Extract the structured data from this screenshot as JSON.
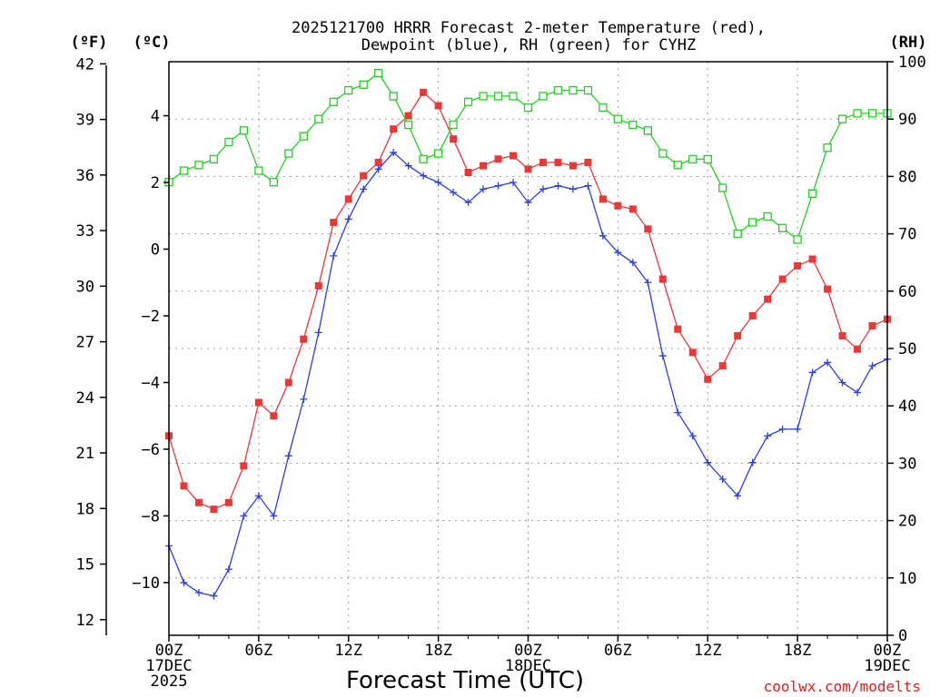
{
  "chart_data": {
    "type": "line",
    "title": "2025121700 HRRR Forecast 2-meter Temperature (red),",
    "subtitle": "Dewpoint (blue), RH (green) for CYHZ",
    "xlabel": "Forecast Time (UTC)",
    "credit": "coolwx.com/modelts",
    "units": {
      "fahrenheit": "(ºF)",
      "celsius": "(ºC)",
      "rh": "(RH)"
    },
    "x_range": [
      0,
      48
    ],
    "celsius_range": [
      -11.58,
      5.62
    ],
    "rh_range": [
      0,
      100
    ],
    "fahrenheit_ticks": [
      "12",
      "15",
      "18",
      "21",
      "24",
      "27",
      "30",
      "33",
      "36",
      "39",
      "42"
    ],
    "fahrenheit_tick_values": [
      12,
      15,
      18,
      21,
      24,
      27,
      30,
      33,
      36,
      39,
      42
    ],
    "celsius_ticks": [
      "4",
      "2",
      "0",
      "-2",
      "-4",
      "-6",
      "-8",
      "-10"
    ],
    "celsius_tick_values": [
      4,
      2,
      0,
      -2,
      -4,
      -6,
      -8,
      -10
    ],
    "rh_ticks": [
      "100",
      "90",
      "80",
      "70",
      "60",
      "50",
      "40",
      "30",
      "20",
      "10",
      "0"
    ],
    "rh_tick_values": [
      100,
      90,
      80,
      70,
      60,
      50,
      40,
      30,
      20,
      10,
      0
    ],
    "x_ticks": [
      {
        "x": 0,
        "line1": "00Z",
        "line2": "17DEC",
        "line3": "2025"
      },
      {
        "x": 6,
        "line1": "06Z"
      },
      {
        "x": 12,
        "line1": "12Z"
      },
      {
        "x": 18,
        "line1": "18Z"
      },
      {
        "x": 24,
        "line1": "00Z",
        "line2": "18DEC"
      },
      {
        "x": 30,
        "line1": "06Z"
      },
      {
        "x": 36,
        "line1": "12Z"
      },
      {
        "x": 42,
        "line1": "18Z"
      },
      {
        "x": 48,
        "line1": "00Z",
        "line2": "19DEC"
      }
    ],
    "colors": {
      "temperature": "#e83838",
      "dewpoint": "#2b3fe0",
      "rh": "#22d022"
    },
    "series": [
      {
        "name": "Temperature (°C)",
        "axis": "celsius",
        "values": [
          -5.6,
          -7.1,
          -7.6,
          -7.8,
          -7.6,
          -6.5,
          -4.6,
          -5.0,
          -4.0,
          -2.7,
          -1.1,
          0.8,
          1.5,
          2.2,
          2.6,
          3.6,
          4.0,
          4.7,
          4.3,
          3.3,
          2.3,
          2.5,
          2.7,
          2.8,
          2.4,
          2.6,
          2.6,
          2.5,
          2.6,
          1.5,
          1.3,
          1.2,
          0.6,
          -0.9,
          -2.4,
          -3.1,
          -3.9,
          -3.5,
          -2.6,
          -2.0,
          -1.5,
          -0.9,
          -0.5,
          -0.3,
          -1.2,
          -2.6,
          -3.0,
          -2.3,
          -2.1
        ]
      },
      {
        "name": "Dewpoint (°C)",
        "axis": "celsius",
        "values": [
          -8.9,
          -10.0,
          -10.3,
          -10.4,
          -9.6,
          -8.0,
          -7.4,
          -8.0,
          -6.2,
          -4.5,
          -2.5,
          -0.2,
          0.9,
          1.8,
          2.4,
          2.9,
          2.5,
          2.2,
          2.0,
          1.7,
          1.4,
          1.8,
          1.9,
          2.0,
          1.4,
          1.8,
          1.9,
          1.8,
          1.9,
          0.4,
          -0.1,
          -0.4,
          -1.0,
          -3.2,
          -4.9,
          -5.6,
          -6.4,
          -6.9,
          -7.4,
          -6.4,
          -5.6,
          -5.4,
          -5.4,
          -3.7,
          -3.4,
          -4.0,
          -4.3,
          -3.5,
          -3.3
        ]
      },
      {
        "name": "RH (%)",
        "axis": "rh",
        "values": [
          79,
          81,
          82,
          83,
          86,
          88,
          81,
          79,
          84,
          87,
          90,
          93,
          95,
          96,
          98,
          94,
          89,
          83,
          84,
          89,
          93,
          94,
          94,
          94,
          92,
          94,
          95,
          95,
          95,
          92,
          90,
          89,
          88,
          84,
          82,
          83,
          83,
          78,
          70,
          72,
          73,
          71,
          69,
          77,
          85,
          90,
          91,
          91,
          91
        ]
      }
    ]
  }
}
